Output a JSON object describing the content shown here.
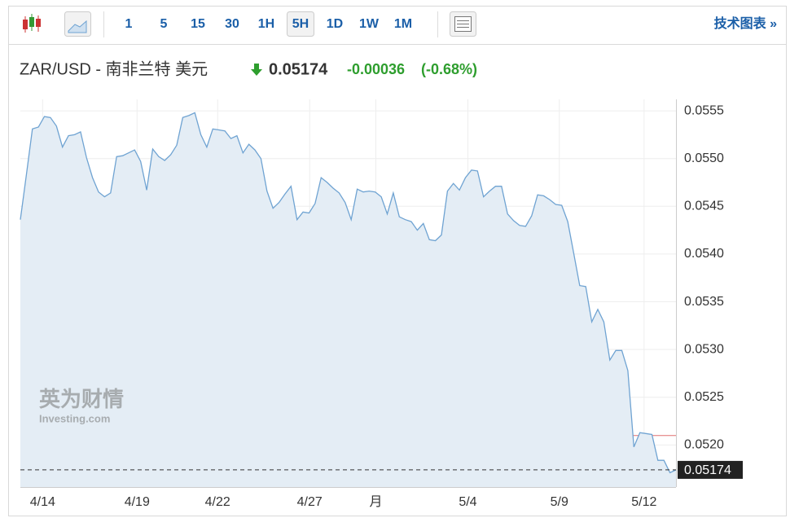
{
  "toolbar": {
    "intervals": [
      "1",
      "5",
      "15",
      "30",
      "1H",
      "5H",
      "1D",
      "1W",
      "1M"
    ],
    "selected": "5H",
    "link": "技术图表 »"
  },
  "quote": {
    "name": "ZAR/USD - 南非兰特 美元",
    "price": "0.05174",
    "change": "-0.00036",
    "change_pct": "(-0.68%)"
  },
  "watermark": {
    "brand": "英为财情",
    "site": "Investing.com"
  },
  "chart_data": {
    "type": "area",
    "color": "#6fa3d2",
    "fill": "#e4edf5",
    "grid": true,
    "prev_close": 0.0521,
    "prev_close_color": "#e07070",
    "xlim": [
      0,
      109
    ],
    "ylim": [
      0.05156,
      0.05562
    ],
    "xticks": [
      {
        "value": 3.7,
        "label": "4/14"
      },
      {
        "value": 19.4,
        "label": "4/19"
      },
      {
        "value": 32.8,
        "label": "4/22"
      },
      {
        "value": 48.1,
        "label": "4/27"
      },
      {
        "value": 59.1,
        "label": "月"
      },
      {
        "value": 74.4,
        "label": "5/4"
      },
      {
        "value": 89.6,
        "label": "5/9"
      },
      {
        "value": 103.7,
        "label": "5/12"
      }
    ],
    "yticks": [
      {
        "value": 0.052,
        "label": "0.0520"
      },
      0.0525,
      {
        "value": 0.053,
        "label": "0.0530"
      },
      0.0535,
      {
        "value": 0.054,
        "label": "0.0540"
      },
      0.0545,
      {
        "value": 0.055,
        "label": "0.0550"
      },
      0.0555
    ],
    "x": [
      0,
      1,
      2,
      3,
      4,
      5,
      6,
      7,
      8,
      9,
      10,
      11,
      12,
      13,
      14,
      15,
      16,
      17,
      18,
      19,
      20,
      21,
      22,
      23,
      24,
      25,
      26,
      27,
      28,
      29,
      30,
      31,
      32,
      33,
      34,
      35,
      36,
      37,
      38,
      39,
      40,
      41,
      42,
      43,
      44,
      45,
      46,
      47,
      48,
      49,
      50,
      51,
      52,
      53,
      54,
      55,
      56,
      57,
      58,
      59,
      60,
      61,
      62,
      63,
      64,
      65,
      66,
      67,
      68,
      69,
      70,
      71,
      72,
      73,
      74,
      75,
      76,
      77,
      78,
      79,
      80,
      81,
      82,
      83,
      84,
      85,
      86,
      87,
      88,
      89,
      90,
      91,
      92,
      93,
      94,
      95,
      96,
      97,
      98,
      99,
      100,
      101,
      102,
      103,
      104,
      105,
      106,
      107,
      108,
      109
    ],
    "series": [
      {
        "name": "ZAR/USD",
        "values": [
          0.05436,
          0.05483,
          0.05531,
          0.05533,
          0.05544,
          0.05543,
          0.05534,
          0.05512,
          0.05524,
          0.05525,
          0.05528,
          0.05501,
          0.0548,
          0.05465,
          0.0546,
          0.05464,
          0.05502,
          0.05503,
          0.05506,
          0.05509,
          0.05497,
          0.05467,
          0.0551,
          0.05502,
          0.05498,
          0.05504,
          0.05514,
          0.05543,
          0.05545,
          0.05548,
          0.05525,
          0.05512,
          0.05531,
          0.0553,
          0.05529,
          0.05521,
          0.05524,
          0.05506,
          0.05515,
          0.05509,
          0.055,
          0.05466,
          0.05448,
          0.05454,
          0.05463,
          0.05471,
          0.05436,
          0.05444,
          0.05443,
          0.05453,
          0.0548,
          0.05475,
          0.05469,
          0.05464,
          0.05454,
          0.05436,
          0.05468,
          0.05465,
          0.05466,
          0.05465,
          0.0546,
          0.05442,
          0.05464,
          0.05439,
          0.05436,
          0.05434,
          0.05425,
          0.05432,
          0.05415,
          0.05414,
          0.0542,
          0.05466,
          0.05474,
          0.05467,
          0.0548,
          0.05488,
          0.05487,
          0.0546,
          0.05466,
          0.05471,
          0.05471,
          0.05442,
          0.05435,
          0.0543,
          0.05429,
          0.0544,
          0.05462,
          0.05461,
          0.05457,
          0.05452,
          0.05451,
          0.05434,
          0.05401,
          0.05367,
          0.05366,
          0.05329,
          0.05342,
          0.05329,
          0.05289,
          0.05299,
          0.05299,
          0.05278,
          0.05198,
          0.05213,
          0.05212,
          0.05211,
          0.05184,
          0.05184,
          0.05171,
          0.05174
        ]
      }
    ]
  }
}
